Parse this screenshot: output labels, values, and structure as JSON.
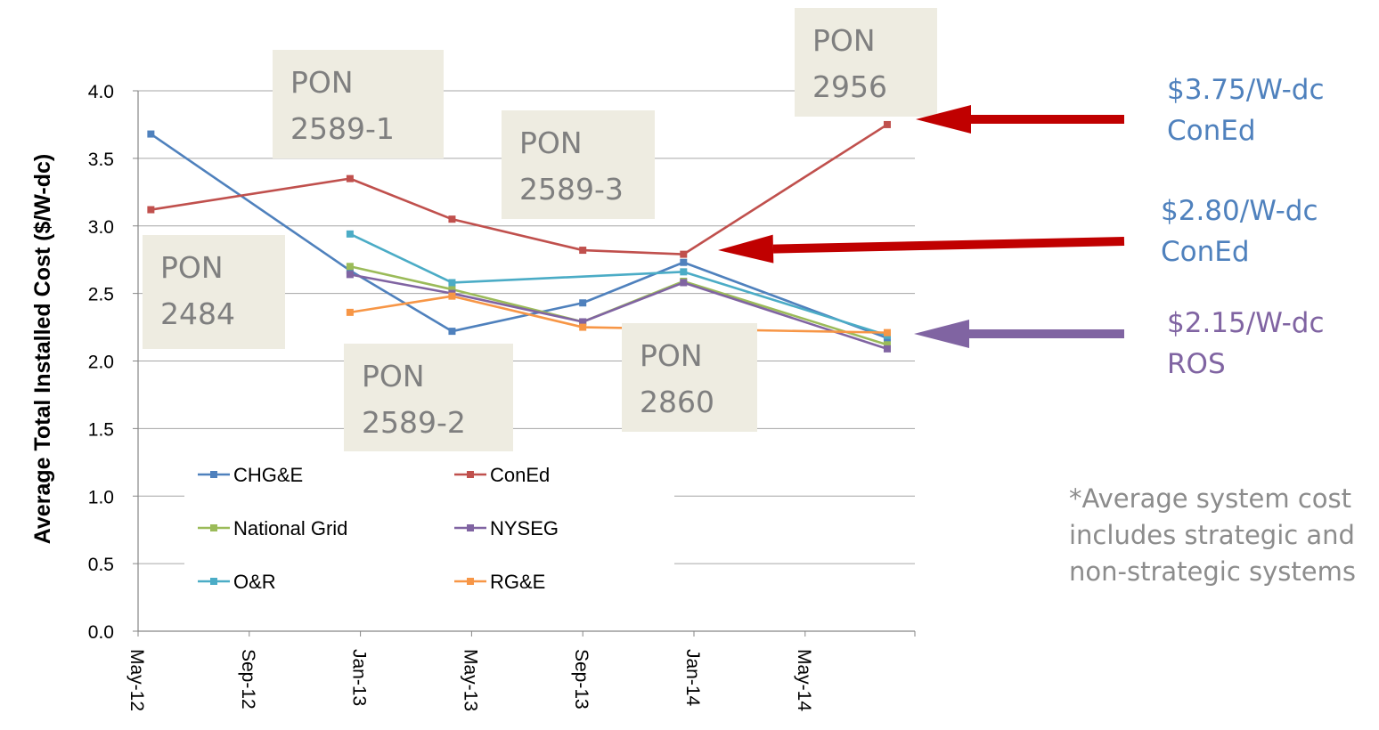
{
  "chart_data": {
    "type": "line",
    "title": "",
    "xlabel": "",
    "ylabel": "Average Total Installed Cost ($/W-dc)",
    "ylim": [
      0,
      4.0
    ],
    "yticks": [
      "0.0",
      "0.5",
      "1.0",
      "1.5",
      "2.0",
      "2.5",
      "3.0",
      "3.5",
      "4.0"
    ],
    "xticks": [
      "May-12",
      "Sep-12",
      "Jan-13",
      "May-13",
      "Sep-13",
      "Jan-14",
      "May-14"
    ],
    "grid": "horizontal",
    "legend_position": "bottom-left",
    "series": [
      {
        "name": "CHG&E",
        "color": "#4f81bd",
        "points": [
          [
            "2012-05-15",
            3.68
          ],
          [
            "2012-12-20",
            2.67
          ],
          [
            "2013-04-10",
            2.22
          ],
          [
            "2013-09-01",
            2.43
          ],
          [
            "2013-12-20",
            2.73
          ],
          [
            "2014-07-30",
            2.17
          ]
        ]
      },
      {
        "name": "ConEd",
        "color": "#c0504d",
        "points": [
          [
            "2012-05-15",
            3.12
          ],
          [
            "2012-12-20",
            3.35
          ],
          [
            "2013-04-10",
            3.05
          ],
          [
            "2013-09-01",
            2.82
          ],
          [
            "2013-12-20",
            2.79
          ],
          [
            "2014-07-30",
            3.75
          ]
        ]
      },
      {
        "name": "National Grid",
        "color": "#9bbb59",
        "points": [
          [
            "2012-12-20",
            2.7
          ],
          [
            "2013-04-10",
            2.53
          ],
          [
            "2013-09-01",
            2.29
          ],
          [
            "2013-12-20",
            2.59
          ],
          [
            "2014-07-30",
            2.12
          ]
        ]
      },
      {
        "name": "NYSEG",
        "color": "#8064a2",
        "points": [
          [
            "2012-12-20",
            2.64
          ],
          [
            "2013-04-10",
            2.5
          ],
          [
            "2013-09-01",
            2.29
          ],
          [
            "2013-12-20",
            2.58
          ],
          [
            "2014-07-30",
            2.09
          ]
        ]
      },
      {
        "name": "O&R",
        "color": "#4bacc6",
        "points": [
          [
            "2012-12-20",
            2.94
          ],
          [
            "2013-04-10",
            2.58
          ],
          [
            "2013-12-20",
            2.66
          ],
          [
            "2014-07-30",
            2.19
          ]
        ]
      },
      {
        "name": "RG&E",
        "color": "#f79646",
        "points": [
          [
            "2012-12-20",
            2.36
          ],
          [
            "2013-04-10",
            2.48
          ],
          [
            "2013-09-01",
            2.25
          ],
          [
            "2014-07-30",
            2.21
          ]
        ]
      }
    ],
    "annotations": [
      {
        "lines": [
          "PON",
          "2484"
        ]
      },
      {
        "lines": [
          "PON",
          "2589-1"
        ]
      },
      {
        "lines": [
          "PON",
          "2589-2"
        ]
      },
      {
        "lines": [
          "PON",
          "2589-3"
        ]
      },
      {
        "lines": [
          "PON",
          "2860"
        ]
      },
      {
        "lines": [
          "PON",
          "2956"
        ]
      }
    ]
  },
  "callouts": [
    {
      "price": "$3.75/W-dc",
      "utility": "ConEd",
      "text_color": "#4f81bd",
      "arrow_color": "#c00000"
    },
    {
      "price": "$2.80/W-dc",
      "utility": "ConEd",
      "text_color": "#4f81bd",
      "arrow_color": "#c00000"
    },
    {
      "price": "$2.15/W-dc",
      "utility": "ROS",
      "text_color": "#8064a2",
      "arrow_color": "#8064a2"
    }
  ],
  "note": {
    "lines": [
      "*Average system cost",
      "includes strategic and",
      "non-strategic systems"
    ]
  }
}
